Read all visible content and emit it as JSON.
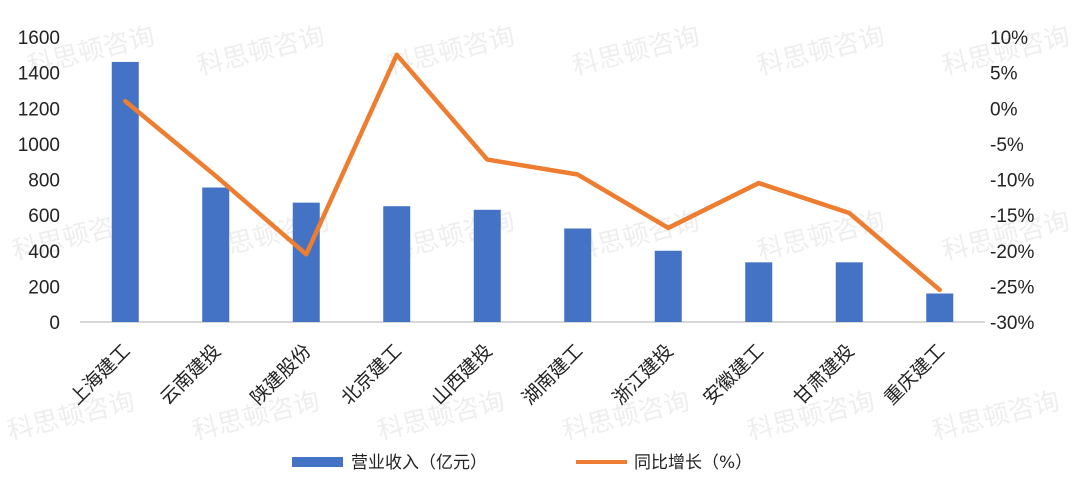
{
  "chart_data": {
    "type": "bar",
    "categories": [
      "上海建工",
      "云南建投",
      "陕建股份",
      "北京建工",
      "山西建投",
      "湖南建工",
      "浙江建投",
      "安徽建工",
      "甘肃建投",
      "重庆建工"
    ],
    "series": [
      {
        "name": "营业收入（亿元）",
        "type": "bar",
        "axis": "left",
        "color": "#4472C4",
        "values": [
          1460,
          755,
          670,
          650,
          630,
          525,
          400,
          335,
          335,
          160
        ]
      },
      {
        "name": "同比增长（%）",
        "type": "line",
        "axis": "right",
        "color": "#ED7D31",
        "values": [
          1,
          -9.5,
          -20.5,
          7.5,
          -7.2,
          -9.3,
          -16.8,
          -10.5,
          -14.7,
          -25.5
        ]
      }
    ],
    "left_axis": {
      "ylim": [
        0,
        1600
      ],
      "ticks": [
        0,
        200,
        400,
        600,
        800,
        1000,
        1200,
        1400,
        1600
      ],
      "tick_labels": [
        "0",
        "200",
        "400",
        "600",
        "800",
        "1000",
        "1200",
        "1400",
        "1600"
      ]
    },
    "right_axis": {
      "ylim": [
        -30,
        10
      ],
      "ticks": [
        -30,
        -25,
        -20,
        -15,
        -10,
        -5,
        0,
        5,
        10
      ],
      "tick_labels": [
        "-30%",
        "-25%",
        "-20%",
        "-15%",
        "-10%",
        "-5%",
        "0%",
        "5%",
        "10%"
      ]
    },
    "xlabel": "",
    "ylabel": "",
    "title": "",
    "grid": false,
    "legend_position": "bottom"
  },
  "watermark": {
    "text": "科思顿咨询"
  }
}
